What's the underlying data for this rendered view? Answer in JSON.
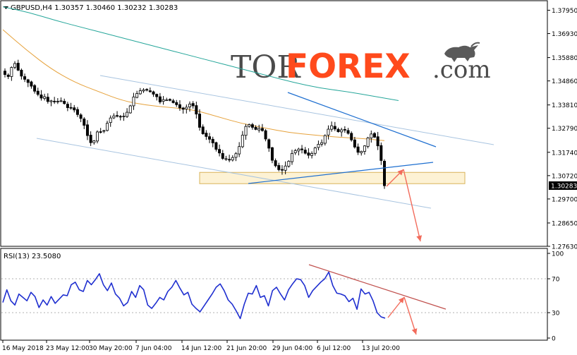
{
  "chart_data": [
    {
      "type": "candlestick",
      "header": "GBPUSD,H4  1.30357 1.30460 1.30232 1.30283",
      "symbol": "GBPUSD",
      "timeframe": "H4",
      "ohlc_last": {
        "open": 1.30357,
        "high": 1.3046,
        "low": 1.30232,
        "close": 1.30283
      },
      "last_price_label": "1.30283",
      "ylim": [
        1.2763,
        1.3815
      ],
      "y_ticks": [
        "1.37950",
        "1.36930",
        "1.35880",
        "1.34860",
        "1.33810",
        "1.32790",
        "1.31740",
        "1.30720",
        "1.29700",
        "1.28650",
        "1.27630"
      ],
      "x_ticks": [
        "16 May 2018",
        "23 May 12:00",
        "30 May 20:00",
        "7 Jun 04:00",
        "14 Jun 12:00",
        "21 Jun 20:00",
        "29 Jun 04:00",
        "6 Jul 12:00",
        "13 Jul 20:00"
      ],
      "series": [
        {
          "type": "close",
          "values": [
            1.3514,
            1.3505,
            1.3545,
            1.3562,
            1.3533,
            1.3507,
            1.3493,
            1.3479,
            1.3463,
            1.3441,
            1.3427,
            1.3411,
            1.3417,
            1.3396,
            1.3399,
            1.3397,
            1.3397,
            1.3399,
            1.3387,
            1.3369,
            1.3369,
            1.3359,
            1.3339,
            1.3322,
            1.3292,
            1.3247,
            1.3216,
            1.3224,
            1.3263,
            1.3264,
            1.3269,
            1.3301,
            1.3324,
            1.3333,
            1.3334,
            1.3329,
            1.3332,
            1.3349,
            1.3377,
            1.3416,
            1.3431,
            1.3443,
            1.3447,
            1.3446,
            1.3439,
            1.3428,
            1.3417,
            1.3394,
            1.3404,
            1.3403,
            1.3401,
            1.3391,
            1.3382,
            1.3368,
            1.3362,
            1.3371,
            1.3385,
            1.3377,
            1.3341,
            1.3283,
            1.3255,
            1.3243,
            1.3231,
            1.3215,
            1.3187,
            1.3171,
            1.3147,
            1.3146,
            1.3143,
            1.3151,
            1.3168,
            1.3199,
            1.3249,
            1.3287,
            1.3295,
            1.3283,
            1.3274,
            1.3278,
            1.3269,
            1.3232,
            1.3192,
            1.3139,
            1.3115,
            1.3098,
            1.3096,
            1.3114,
            1.3135,
            1.3169,
            1.3181,
            1.3188,
            1.3185,
            1.317,
            1.3161,
            1.3169,
            1.3193,
            1.3209,
            1.3216,
            1.3247,
            1.3275,
            1.329,
            1.3276,
            1.3264,
            1.3272,
            1.3272,
            1.3257,
            1.3228,
            1.3197,
            1.3174,
            1.3178,
            1.3202,
            1.3237,
            1.3254,
            1.324,
            1.3202,
            1.3138,
            1.3028
          ]
        },
        {
          "type": "moving_average",
          "color": "#e6a23c",
          "values": [
            1.371,
            1.362,
            1.354,
            1.348,
            1.344,
            1.34,
            1.338,
            1.337,
            1.336,
            1.333,
            1.33,
            1.328,
            1.326,
            1.325,
            1.324,
            1.3235,
            1.3225
          ]
        },
        {
          "type": "moving_average",
          "color": "#26a69a",
          "values": [
            1.381,
            1.3785,
            1.375,
            1.372,
            1.369,
            1.366,
            1.363,
            1.36,
            1.357,
            1.354,
            1.351,
            1.348,
            1.3455,
            1.344,
            1.342,
            1.34
          ]
        }
      ],
      "annotations": {
        "support_zone": [
          1.306,
          1.308
        ],
        "lines_color": "#1e6fd0",
        "channel_color": "#a8c4e0",
        "forecast_arrow_color": "#f26b5b"
      }
    },
    {
      "type": "line",
      "header": "RSI(13) 23.5080",
      "indicator": "RSI",
      "period": 13,
      "last_value": 23.508,
      "ylim": [
        0,
        100
      ],
      "y_ticks": [
        "100",
        "70",
        "30",
        "0"
      ],
      "series": [
        {
          "name": "RSI",
          "color": "#1f2fd0",
          "values": [
            42,
            57,
            44,
            39,
            52,
            48,
            44,
            54,
            49,
            36,
            45,
            39,
            49,
            41,
            46,
            51,
            50,
            63,
            66,
            57,
            55,
            68,
            63,
            69,
            76,
            63,
            56,
            65,
            52,
            47,
            38,
            42,
            55,
            48,
            62,
            57,
            39,
            35,
            41,
            48,
            45,
            55,
            60,
            68,
            59,
            51,
            54,
            40,
            35,
            31,
            38,
            45,
            52,
            60,
            64,
            56,
            45,
            40,
            32,
            23,
            40,
            53,
            52,
            62,
            48,
            50,
            38,
            56,
            60,
            52,
            45,
            57,
            64,
            70,
            69,
            62,
            48,
            56,
            61,
            66,
            70,
            78,
            62,
            53,
            52,
            50,
            43,
            47,
            34,
            58,
            52,
            54,
            44,
            30,
            25,
            23.5
          ]
        }
      ],
      "annotations": {
        "trendline_color": "#c0504d",
        "forecast_arrow_color": "#f26b5b"
      }
    }
  ],
  "logo": {
    "text_tor": "TOR",
    "text_forex": "FOREX",
    "text_com": ".com",
    "icon": "bull-icon"
  },
  "colors": {
    "bull": "#000000",
    "bear": "#000000",
    "background": "#ffffff",
    "axis": "#000000",
    "label_bg": "#000000",
    "label_fg": "#ffffff"
  }
}
